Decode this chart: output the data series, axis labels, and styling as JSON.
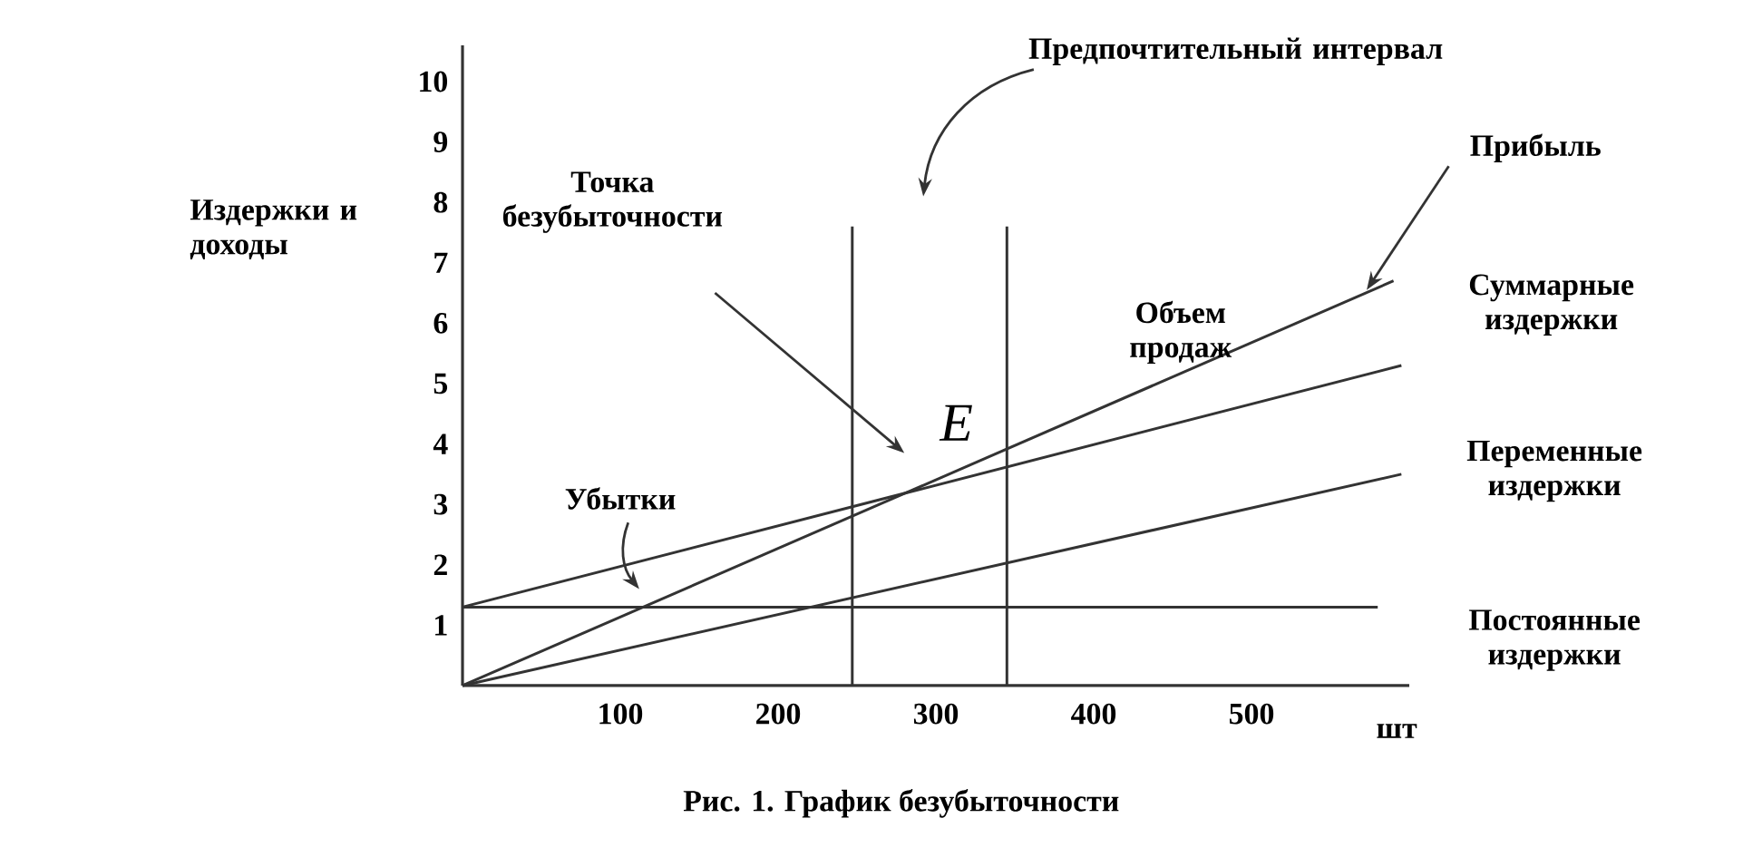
{
  "chart_data": {
    "type": "line",
    "xlabel": "шт",
    "ylabel": "Издержки и доходы",
    "xlim": [
      0,
      600
    ],
    "ylim": [
      0,
      10.6
    ],
    "xticks": [
      100,
      200,
      300,
      400,
      500
    ],
    "yticks": [
      1,
      2,
      3,
      4,
      5,
      6,
      7,
      8,
      9,
      10
    ],
    "marker": "none",
    "line_style": "solid",
    "grid": false,
    "legend": false,
    "series": [
      {
        "name": "Объем продаж",
        "color": "#333333",
        "x": [
          0,
          590
        ],
        "values": [
          0,
          6.7
        ]
      },
      {
        "name": "Суммарные издержки",
        "color": "#333333",
        "x": [
          0,
          595
        ],
        "values": [
          1.3,
          5.3
        ]
      },
      {
        "name": "Переменные издержки",
        "color": "#333333",
        "x": [
          0,
          595
        ],
        "values": [
          0,
          3.5
        ]
      },
      {
        "name": "Постоянные издержки",
        "color": "#333333",
        "x": [
          0,
          580
        ],
        "values": [
          1.3,
          1.3
        ]
      }
    ],
    "ref_lines": [
      {
        "axis": "x",
        "value": 247,
        "label": null
      },
      {
        "axis": "x",
        "value": 345,
        "label": null
      }
    ],
    "annotations": [
      "Точка безубыточности",
      "Убытки",
      "Предпочтительный интервал",
      {
        "text": "Прибыль",
        "x": 573,
        "y": 6.55
      },
      "E",
      "Рис. 1. График безубыточности"
    ]
  }
}
